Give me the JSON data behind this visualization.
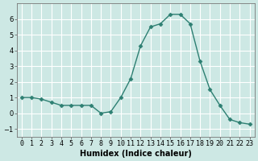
{
  "x": [
    0,
    1,
    2,
    3,
    4,
    5,
    6,
    7,
    8,
    9,
    10,
    11,
    12,
    13,
    14,
    15,
    16,
    17,
    18,
    19,
    20,
    21,
    22,
    23
  ],
  "y": [
    1.0,
    1.0,
    0.9,
    0.7,
    0.5,
    0.5,
    0.5,
    0.5,
    0.0,
    0.1,
    1.0,
    2.2,
    4.3,
    5.5,
    5.7,
    6.3,
    6.3,
    5.7,
    3.3,
    1.5,
    0.5,
    -0.4,
    -0.6,
    -0.7
  ],
  "xlabel": "Humidex (Indice chaleur)",
  "xlim": [
    -0.5,
    23.5
  ],
  "ylim": [
    -1.5,
    7.0
  ],
  "yticks": [
    -1,
    0,
    1,
    2,
    3,
    4,
    5,
    6
  ],
  "xtick_labels": [
    "0",
    "1",
    "2",
    "3",
    "4",
    "5",
    "6",
    "7",
    "8",
    "9",
    "10",
    "11",
    "12",
    "13",
    "14",
    "15",
    "16",
    "17",
    "18",
    "19",
    "20",
    "21",
    "22",
    "23"
  ],
  "line_color": "#2d7f72",
  "marker": "D",
  "marker_size": 2.5,
  "bg_color": "#cde8e4",
  "grid_color": "#ffffff",
  "xlabel_fontsize": 7,
  "tick_fontsize": 6
}
